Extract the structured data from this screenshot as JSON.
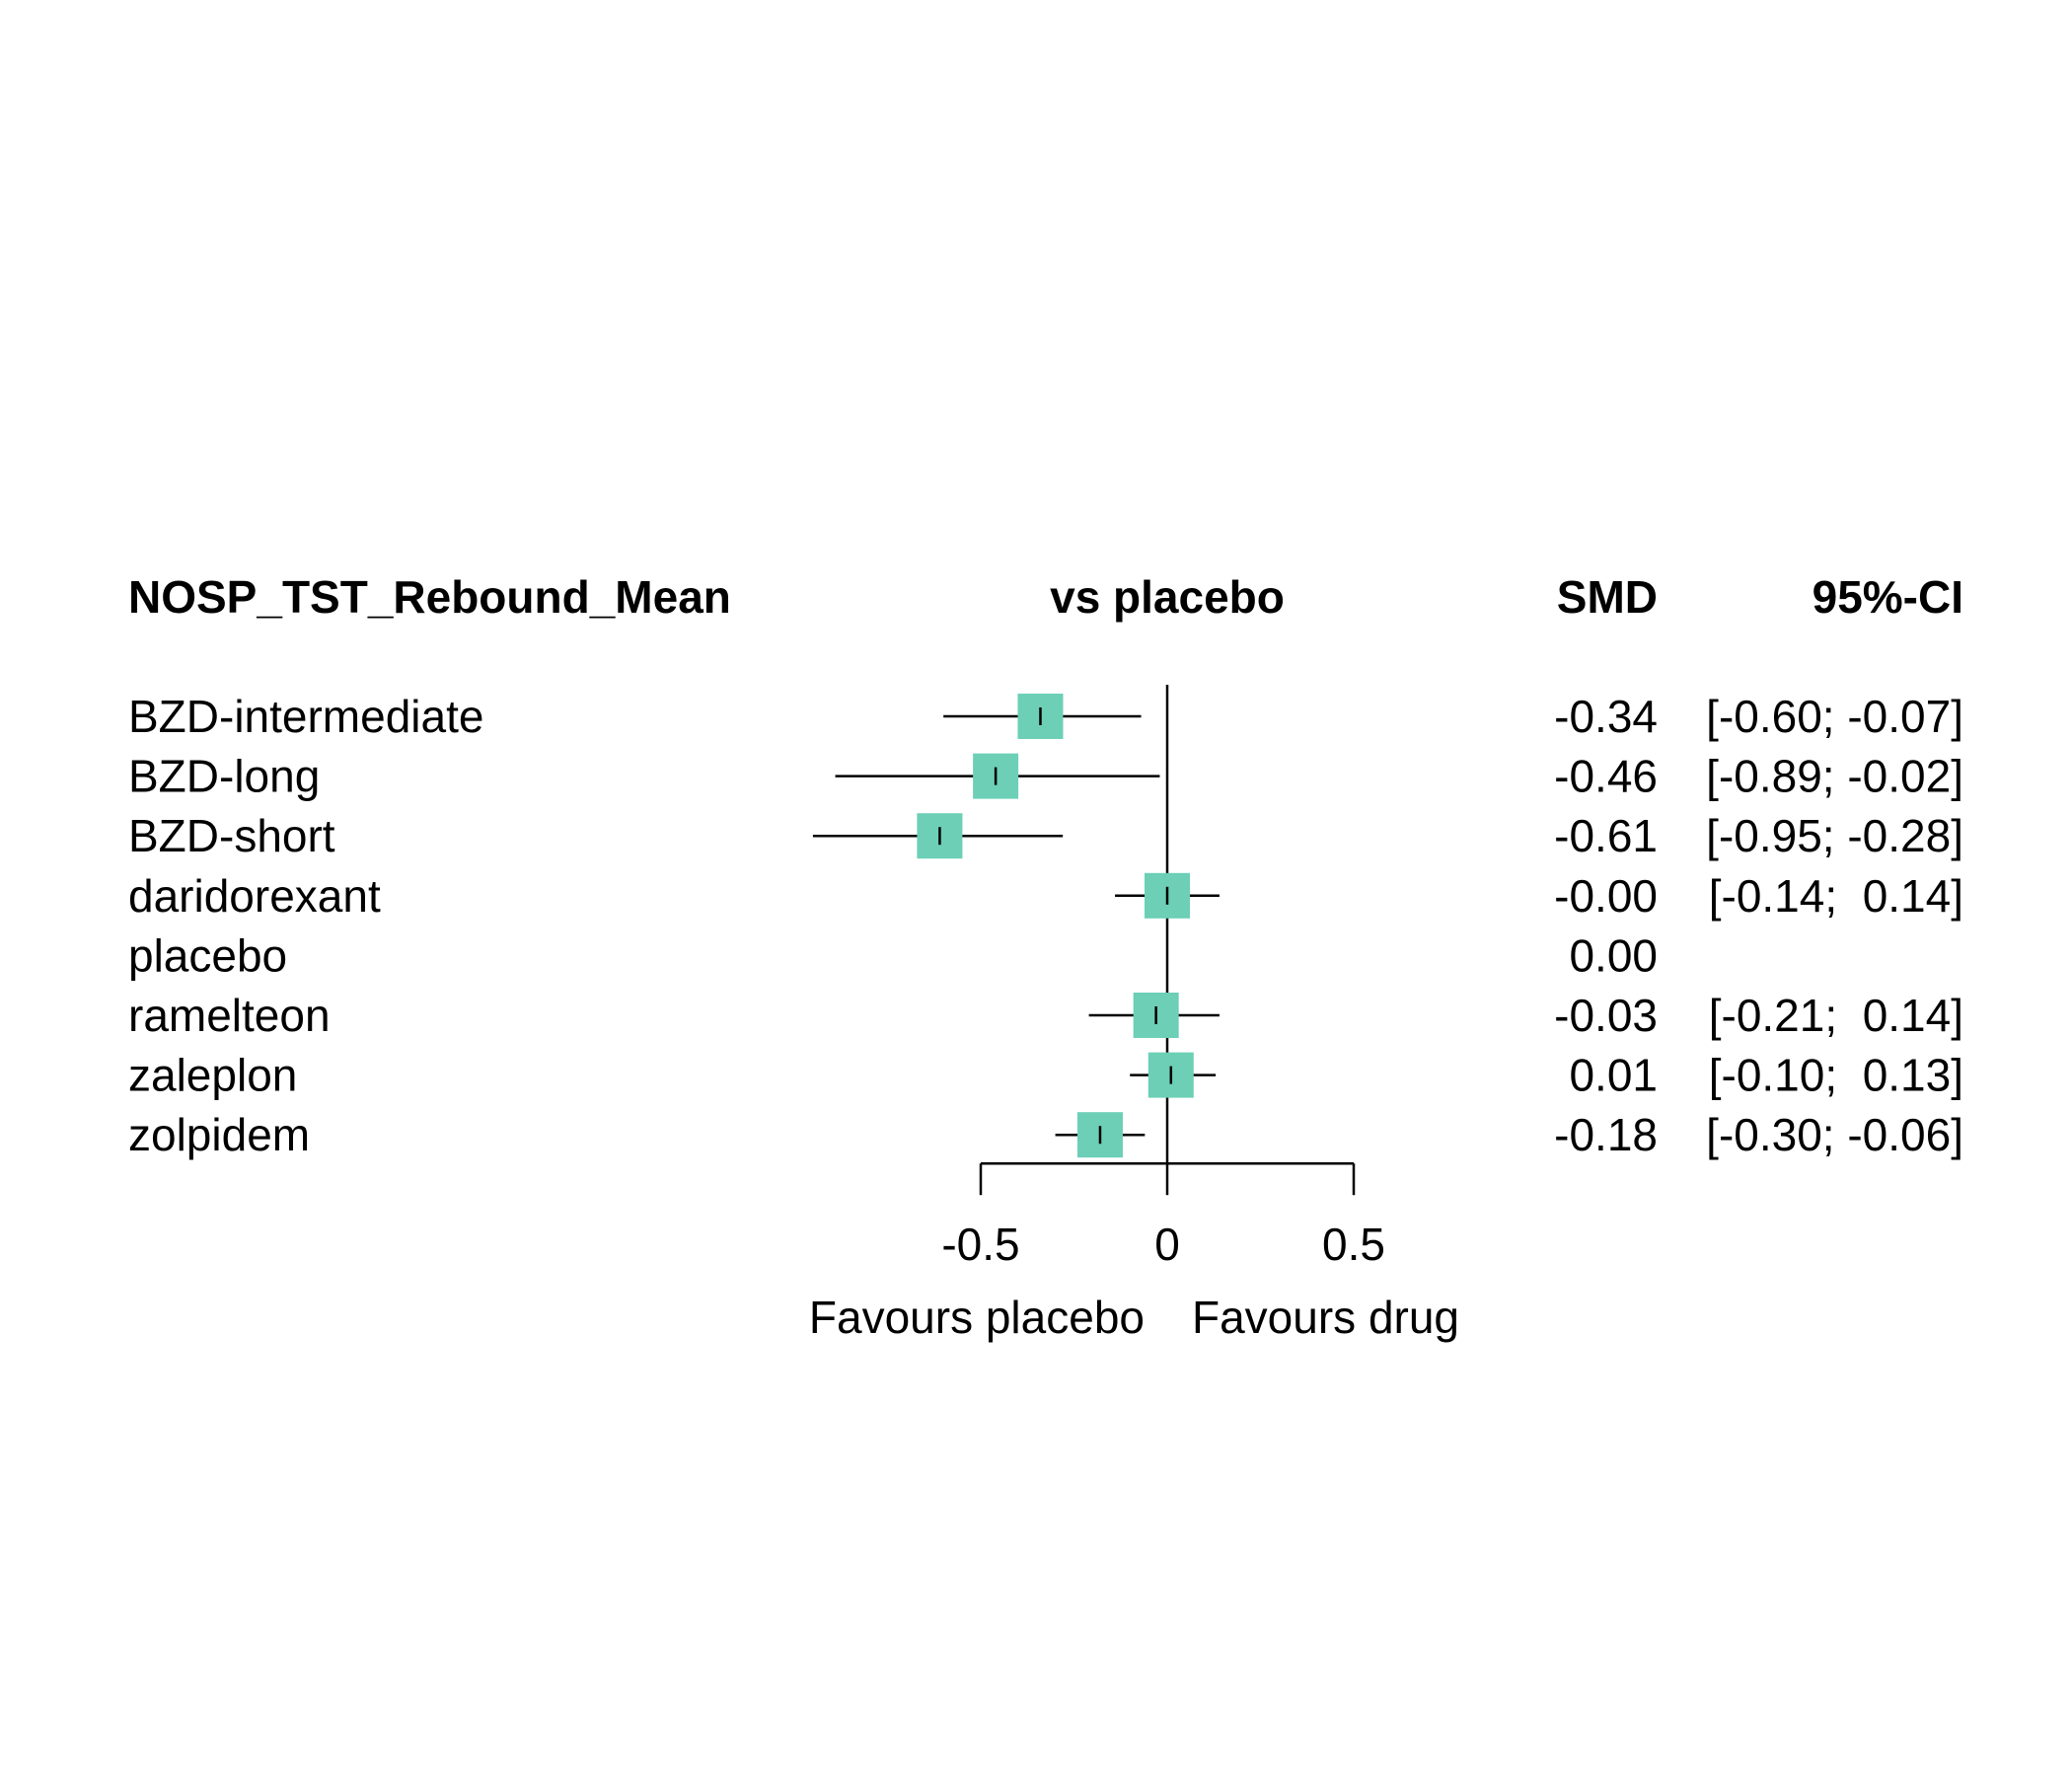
{
  "chart_data": {
    "type": "forest",
    "headers": {
      "outcome": "NOSP_TST_Rebound_Mean",
      "comparison": "vs placebo",
      "estimate": "SMD",
      "ci": "95%-CI"
    },
    "rows": [
      {
        "treatment": "BZD-intermediate",
        "smd": -0.34,
        "lower": -0.6,
        "upper": -0.07,
        "smd_text": "-0.34",
        "ci_text": "[-0.60; -0.07]",
        "weight": 1.0
      },
      {
        "treatment": "BZD-long",
        "smd": -0.46,
        "lower": -0.89,
        "upper": -0.02,
        "smd_text": "-0.46",
        "ci_text": "[-0.89; -0.02]",
        "weight": 1.0
      },
      {
        "treatment": "BZD-short",
        "smd": -0.61,
        "lower": -0.95,
        "upper": -0.28,
        "smd_text": "-0.61",
        "ci_text": "[-0.95; -0.28]",
        "weight": 1.0
      },
      {
        "treatment": "daridorexant",
        "smd": -0.0,
        "lower": -0.14,
        "upper": 0.14,
        "smd_text": "-0.00",
        "ci_text": "[-0.14;  0.14]",
        "weight": 1.0
      },
      {
        "treatment": "placebo",
        "smd": 0.0,
        "lower": null,
        "upper": null,
        "smd_text": "0.00",
        "ci_text": "",
        "weight": 0
      },
      {
        "treatment": "ramelteon",
        "smd": -0.03,
        "lower": -0.21,
        "upper": 0.14,
        "smd_text": "-0.03",
        "ci_text": "[-0.21;  0.14]",
        "weight": 1.0
      },
      {
        "treatment": "zaleplon",
        "smd": 0.01,
        "lower": -0.1,
        "upper": 0.13,
        "smd_text": "0.01",
        "ci_text": "[-0.10;  0.13]",
        "weight": 1.0
      },
      {
        "treatment": "zolpidem",
        "smd": -0.18,
        "lower": -0.3,
        "upper": -0.06,
        "smd_text": "-0.18",
        "ci_text": "[-0.30; -0.06]",
        "weight": 1.0
      }
    ],
    "x_axis": {
      "ticks": [
        -0.5,
        0,
        0.5
      ],
      "tick_labels": [
        "-0.5",
        "0",
        "0.5"
      ],
      "xlim": [
        -0.5,
        0.5
      ],
      "reference_line": 0
    },
    "favours": {
      "left": "Favours placebo",
      "right": "Favours drug"
    },
    "colors": {
      "box": "#6ccfb6",
      "lines": "#000000"
    }
  }
}
